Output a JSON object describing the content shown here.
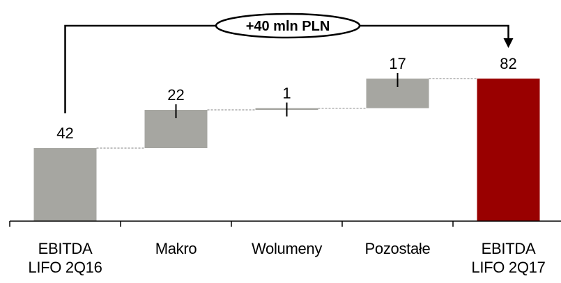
{
  "chart_data": {
    "type": "waterfall",
    "categories": [
      "EBITDA\nLIFO 2Q16",
      "Makro",
      "Wolumeny",
      "Pozostałe",
      "EBITDA\nLIFO 2Q17"
    ],
    "values": [
      42,
      22,
      1,
      17,
      82
    ],
    "value_labels": [
      "42",
      "22",
      "1",
      "17",
      "82"
    ],
    "kinds": [
      "total",
      "delta",
      "delta",
      "delta",
      "total"
    ],
    "annotation": "+40 mln PLN",
    "colors": {
      "total_start": "#a6a6a1",
      "delta": "#a6a6a1",
      "total_end": "#990000",
      "connector": "#808080"
    }
  }
}
